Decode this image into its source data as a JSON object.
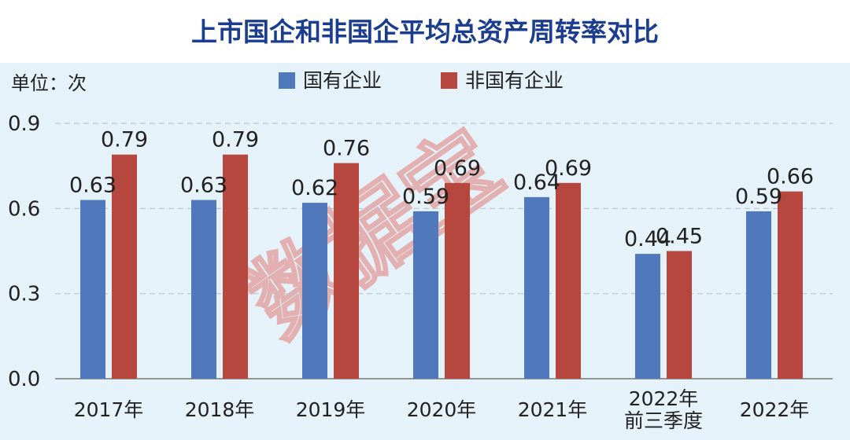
{
  "title": "上市国企和非国企平均总资产周转率对比",
  "unit_label": "单位：次",
  "watermark": "数据宝",
  "colors": {
    "soe": "#4f79bc",
    "non_soe": "#b5473f",
    "title": "#1b3d90"
  },
  "chart_data": {
    "type": "bar",
    "title": "上市国企和非国企平均总资产周转率对比",
    "ylabel": "单位：次",
    "ylim": [
      0,
      0.9
    ],
    "yticks": [
      "0.0",
      "0.3",
      "0.6",
      "0.9"
    ],
    "grid": true,
    "legend_position": "top-center",
    "categories": [
      [
        "2017年"
      ],
      [
        "2018年"
      ],
      [
        "2019年"
      ],
      [
        "2020年"
      ],
      [
        "2021年"
      ],
      [
        "2022年",
        "前三季度"
      ],
      [
        "2022年"
      ]
    ],
    "series": [
      {
        "name": "国有企业",
        "color": "#4f79bc",
        "values": [
          0.63,
          0.63,
          0.62,
          0.59,
          0.64,
          0.44,
          0.59
        ]
      },
      {
        "name": "非国有企业",
        "color": "#b5473f",
        "values": [
          0.79,
          0.79,
          0.76,
          0.69,
          0.69,
          0.45,
          0.66
        ]
      }
    ]
  }
}
